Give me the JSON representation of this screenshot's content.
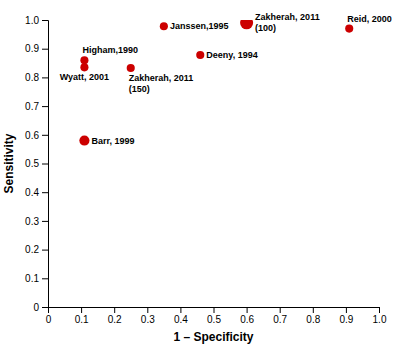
{
  "chart_data": {
    "type": "scatter",
    "xlabel": "1 – Specificity",
    "ylabel": "Sensitivity",
    "labels": [
      "Higham,1990",
      "Wyatt, 2001",
      "Janssen,1995",
      "Zakherah, 2011\n(150)",
      "Deeny, 1994",
      "Zakherah, 2011\n(100)",
      "Barr, 1999",
      "Reid, 2000"
    ],
    "x": [
      0.11,
      0.11,
      0.35,
      0.25,
      0.46,
      0.6,
      0.11,
      0.91
    ],
    "values": [
      0.86,
      0.835,
      0.978,
      0.833,
      0.878,
      0.99,
      0.58,
      0.97
    ],
    "sizes": [
      35,
      35,
      35,
      35,
      35,
      90,
      55,
      35
    ],
    "color": "#cc0000",
    "xlim": [
      0,
      1.0
    ],
    "ylim": [
      0,
      1.0
    ],
    "xticks": [
      0,
      0.1,
      0.2,
      0.3,
      0.4,
      0.5,
      0.6,
      0.7,
      0.8,
      0.9,
      {
        "value": 1.0,
        "label": "1.0"
      }
    ],
    "yticks": [
      0,
      0.1,
      0.2,
      0.3,
      0.4,
      0.5,
      0.6,
      0.7,
      0.8,
      0.9,
      {
        "value": 1.0,
        "label": "1.0"
      }
    ]
  }
}
